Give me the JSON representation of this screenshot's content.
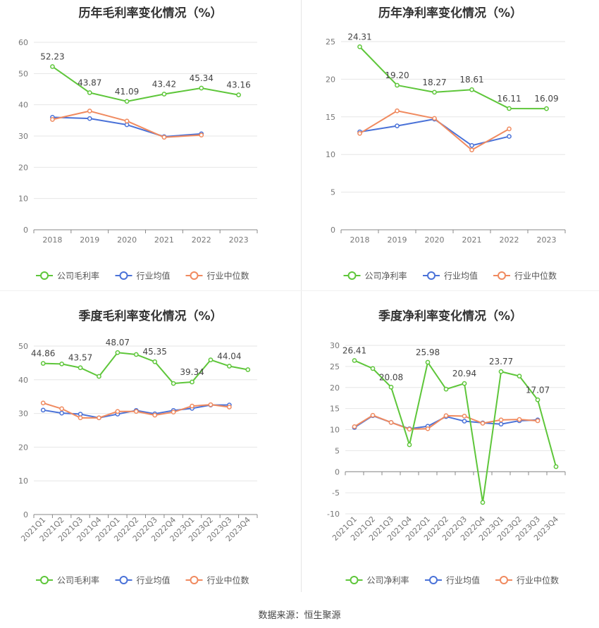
{
  "source": "数据来源：恒生聚源",
  "colors": {
    "company": "#5ec63a",
    "avg": "#4a72d8",
    "median": "#f08a5f",
    "grid": "#e6e6e6",
    "axis": "#888888",
    "text": "#444444"
  },
  "chart_data": [
    {
      "type": "line",
      "title": "历年毛利率变化情况（%）",
      "categories": [
        "2018",
        "2019",
        "2020",
        "2021",
        "2022",
        "2023"
      ],
      "ylim": [
        0,
        60
      ],
      "yticks": [
        0,
        10,
        20,
        30,
        40,
        50,
        60
      ],
      "grid": true,
      "legend_position": "bottom",
      "series": [
        {
          "name": "公司毛利率",
          "key": "company",
          "values": [
            52.23,
            43.87,
            41.09,
            43.42,
            45.34,
            43.16
          ],
          "labels": [
            "52.23",
            "43.87",
            "41.09",
            "43.42",
            "45.34",
            "43.16"
          ]
        },
        {
          "name": "行业均值",
          "key": "avg",
          "values": [
            36.0,
            35.6,
            33.6,
            29.8,
            30.7,
            null
          ]
        },
        {
          "name": "行业中位数",
          "key": "median",
          "values": [
            35.3,
            38.0,
            34.8,
            29.6,
            30.3,
            null
          ]
        }
      ]
    },
    {
      "type": "line",
      "title": "历年净利率变化情况（%）",
      "categories": [
        "2018",
        "2019",
        "2020",
        "2021",
        "2022",
        "2023"
      ],
      "ylim": [
        0,
        25
      ],
      "yticks": [
        0,
        5,
        10,
        15,
        20,
        25
      ],
      "grid": true,
      "legend_position": "bottom",
      "series": [
        {
          "name": "公司净利率",
          "key": "company",
          "values": [
            24.31,
            19.2,
            18.27,
            18.61,
            16.11,
            16.09
          ],
          "labels": [
            "24.31",
            "19.20",
            "18.27",
            "18.61",
            "16.11",
            "16.09"
          ]
        },
        {
          "name": "行业均值",
          "key": "avg",
          "values": [
            13.0,
            13.8,
            14.7,
            11.2,
            12.4,
            null
          ]
        },
        {
          "name": "行业中位数",
          "key": "median",
          "values": [
            12.8,
            15.8,
            14.8,
            10.6,
            13.4,
            null
          ]
        }
      ]
    },
    {
      "type": "line",
      "title": "季度毛利率变化情况（%）",
      "categories": [
        "2021Q1",
        "2021Q2",
        "2021Q3",
        "2021Q4",
        "2022Q1",
        "2022Q2",
        "2022Q3",
        "2022Q4",
        "2023Q1",
        "2023Q2",
        "2023Q3",
        "2023Q4"
      ],
      "ylim": [
        0,
        50
      ],
      "yticks": [
        0,
        10,
        20,
        30,
        40,
        50
      ],
      "grid": true,
      "legend_position": "bottom",
      "series": [
        {
          "name": "公司毛利率",
          "key": "company",
          "values": [
            44.86,
            44.7,
            43.57,
            41.0,
            48.07,
            47.5,
            45.35,
            38.9,
            39.34,
            45.9,
            44.04,
            43.0
          ],
          "labels": [
            "44.86",
            "",
            "43.57",
            "",
            "48.07",
            "",
            "45.35",
            "",
            "39.34",
            "",
            "44.04",
            ""
          ]
        },
        {
          "name": "行业均值",
          "key": "avg",
          "values": [
            31.0,
            30.1,
            29.8,
            28.7,
            29.8,
            30.9,
            29.9,
            30.9,
            31.5,
            32.5,
            32.5,
            null
          ]
        },
        {
          "name": "行业中位数",
          "key": "median",
          "values": [
            33.1,
            31.4,
            28.7,
            28.7,
            30.6,
            30.6,
            29.5,
            30.4,
            32.2,
            32.6,
            31.9,
            null
          ]
        }
      ]
    },
    {
      "type": "line",
      "title": "季度净利率变化情况（%）",
      "categories": [
        "2021Q1",
        "2021Q2",
        "2021Q3",
        "2021Q4",
        "2022Q1",
        "2022Q2",
        "2022Q3",
        "2022Q4",
        "2023Q1",
        "2023Q2",
        "2023Q3",
        "2023Q4"
      ],
      "ylim": [
        -10,
        30
      ],
      "yticks": [
        -10,
        -5,
        0,
        5,
        10,
        15,
        20,
        25,
        30
      ],
      "grid": true,
      "legend_position": "bottom",
      "series": [
        {
          "name": "公司净利率",
          "key": "company",
          "values": [
            26.41,
            24.5,
            20.08,
            6.4,
            25.98,
            19.6,
            20.94,
            -7.3,
            23.77,
            22.7,
            17.07,
            1.2
          ],
          "labels": [
            "26.41",
            "",
            "20.08",
            "",
            "25.98",
            "",
            "20.94",
            "",
            "23.77",
            "",
            "17.07",
            ""
          ]
        },
        {
          "name": "行业均值",
          "key": "avg",
          "values": [
            10.5,
            13.3,
            11.7,
            10.2,
            10.8,
            13.1,
            12.0,
            11.6,
            11.3,
            12.1,
            12.3,
            null
          ]
        },
        {
          "name": "行业中位数",
          "key": "median",
          "values": [
            10.7,
            13.4,
            11.7,
            10.1,
            10.2,
            13.3,
            13.2,
            11.5,
            12.3,
            12.4,
            12.1,
            null
          ]
        }
      ]
    }
  ]
}
